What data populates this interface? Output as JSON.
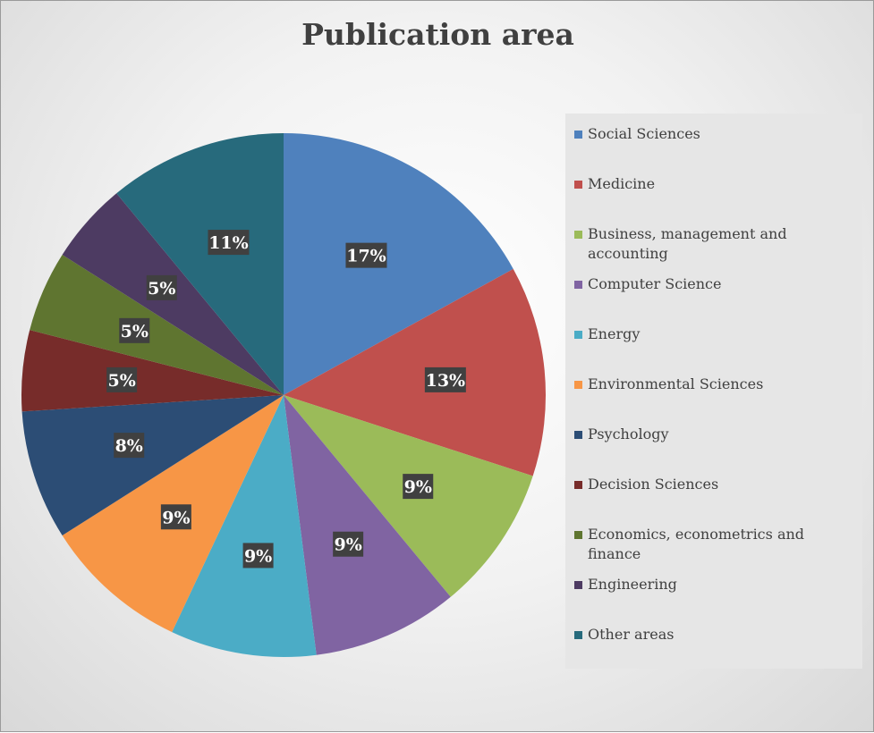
{
  "chart_data": {
    "type": "pie",
    "title": "Publication area",
    "categories": [
      "Social Sciences",
      "Medicine",
      "Business, management and accounting",
      "Computer Science",
      "Energy",
      "Environmental Sciences",
      "Psychology",
      "Decision Sciences",
      "Economics, econometrics and finance",
      "Engineering",
      "Other areas"
    ],
    "values": [
      17,
      13,
      9,
      9,
      9,
      9,
      8,
      5,
      5,
      5,
      11
    ],
    "labels": [
      "17%",
      "13%",
      "9%",
      "9%",
      "9%",
      "9%",
      "8%",
      "5%",
      "5%",
      "5%",
      "11%"
    ],
    "colors": [
      "#4f81bd",
      "#c0504d",
      "#9bbb59",
      "#8064a2",
      "#4bacc6",
      "#f79646",
      "#2c4d75",
      "#772c2a",
      "#5f7530",
      "#4d3b62",
      "#276a7c"
    ],
    "legend_position": "right"
  }
}
